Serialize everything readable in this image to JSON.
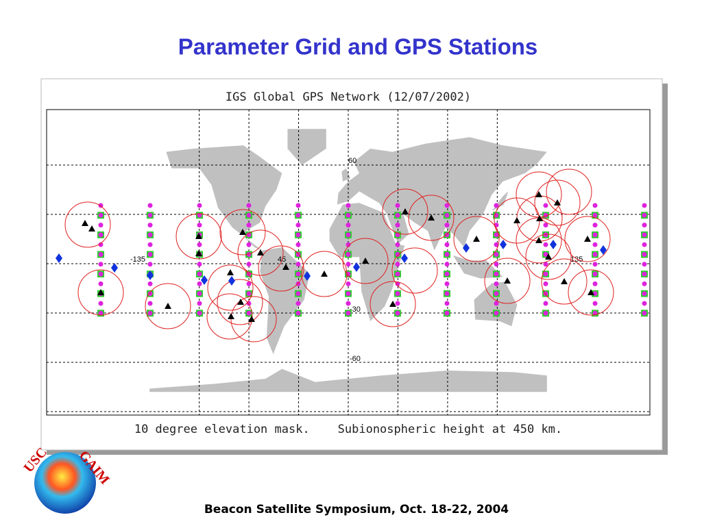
{
  "slide": {
    "title": "Parameter Grid and GPS Stations",
    "footer": "Beacon Satellite Symposium, Oct. 18-22, 2004"
  },
  "figure": {
    "title": "IGS Global GPS Network (12/07/2002)",
    "caption": "10 degree elevation mask.    Subionospheric height at 450 km.",
    "map_labels": [
      "60",
      "-135",
      "45",
      "135",
      "-30",
      "-60"
    ]
  },
  "logo": {
    "left": "USC",
    "right": "GAIM"
  }
}
